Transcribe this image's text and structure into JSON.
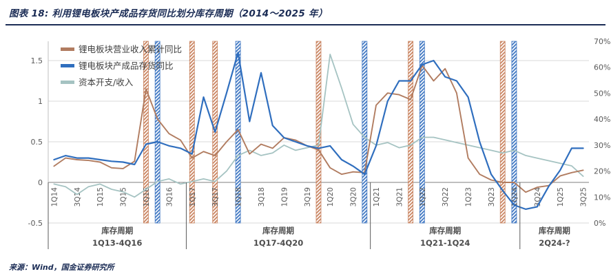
{
  "title": "图表 18: 利用锂电板块产成品存货同比划分库存周期（2014～2025 年）",
  "source": "来源：Wind，国金证券研究所",
  "chart_data": {
    "type": "line",
    "x_labels": [
      "1Q14",
      "2Q14",
      "3Q14",
      "4Q14",
      "1Q15",
      "2Q15",
      "3Q15",
      "4Q15",
      "1Q16",
      "2Q16",
      "3Q16",
      "4Q16",
      "1Q17",
      "2Q17",
      "3Q17",
      "4Q17",
      "1Q18",
      "2Q18",
      "3Q18",
      "4Q18",
      "1Q19",
      "2Q19",
      "3Q19",
      "4Q19",
      "1Q20",
      "2Q20",
      "3Q20",
      "4Q20",
      "1Q21",
      "2Q21",
      "3Q21",
      "4Q21",
      "1Q22",
      "2Q22",
      "3Q22",
      "4Q22",
      "1Q23",
      "2Q23",
      "3Q23",
      "4Q23",
      "1Q24",
      "2Q24",
      "3Q24",
      "4Q24",
      "1Q25",
      "2Q25",
      "3Q25"
    ],
    "x_tick_every": 2,
    "left_axis": {
      "min": -0.5,
      "max": 1.5,
      "ticks": [
        1.5,
        1,
        0.5,
        0,
        -0.5
      ],
      "labels": [
        "1.5",
        "1",
        "0.5",
        "0",
        "-0.5"
      ]
    },
    "right_axis": {
      "min": 0,
      "max": 70,
      "ticks": [
        70,
        60,
        50,
        40,
        30,
        20,
        10,
        0
      ],
      "labels": [
        "70%",
        "60%",
        "50%",
        "40%",
        "30%",
        "20%",
        "10%",
        "0%"
      ]
    },
    "grid": true,
    "legend_position": "top-left",
    "colors": {
      "revenue_bar": "#C9835F",
      "inventory_bar": "#3E76C2"
    },
    "series": [
      {
        "name": "锂电板块营业收入累计同比",
        "axis": "left",
        "color": "#B17C60",
        "values": [
          0.2,
          0.3,
          0.28,
          0.27,
          0.25,
          0.18,
          0.17,
          0.26,
          1.15,
          0.78,
          0.6,
          0.52,
          0.3,
          0.38,
          0.33,
          0.5,
          0.65,
          0.35,
          0.47,
          0.42,
          0.55,
          0.52,
          0.45,
          0.4,
          0.18,
          0.1,
          0.13,
          0.12,
          0.95,
          1.1,
          1.08,
          1.02,
          1.44,
          1.25,
          1.4,
          1.1,
          0.3,
          0.1,
          0.03,
          0.0,
          0.0,
          -0.12,
          -0.06,
          -0.04,
          0.08,
          0.12,
          0.15
        ]
      },
      {
        "name": "锂电板块产成品存货同比",
        "axis": "left",
        "color": "#2F6EBE",
        "values": [
          0.28,
          0.33,
          0.3,
          0.3,
          0.28,
          0.26,
          0.25,
          0.22,
          0.47,
          0.5,
          0.45,
          0.42,
          0.35,
          1.05,
          0.62,
          1.1,
          1.6,
          0.75,
          1.35,
          0.7,
          0.55,
          0.5,
          0.45,
          0.42,
          0.45,
          0.28,
          0.2,
          0.1,
          0.45,
          1.0,
          1.25,
          1.25,
          1.45,
          1.5,
          1.3,
          1.25,
          1.05,
          0.5,
          0.1,
          -0.1,
          -0.28,
          -0.33,
          -0.3,
          -0.05,
          0.15,
          0.42,
          0.42
        ]
      },
      {
        "name": "资本开支/收入",
        "axis": "right",
        "color": "#A5C3C2",
        "values": [
          15,
          14,
          11,
          14,
          15,
          13,
          12,
          10,
          13,
          16,
          17,
          15,
          16,
          17,
          16,
          20,
          26,
          28,
          26,
          27,
          30,
          28,
          29,
          30,
          65,
          52,
          38,
          33,
          30,
          31,
          29,
          30,
          33,
          33,
          32,
          31,
          30,
          29,
          28,
          27,
          28,
          26,
          25,
          24,
          23,
          22,
          18
        ]
      }
    ],
    "event_bars": [
      {
        "quarter": "1Q16",
        "series": "revenue"
      },
      {
        "quarter": "2Q16",
        "series": "inventory"
      },
      {
        "quarter": "1Q17",
        "series": "revenue"
      },
      {
        "quarter": "3Q17",
        "series": "revenue"
      },
      {
        "quarter": "1Q18",
        "series": "inventory"
      },
      {
        "quarter": "4Q19",
        "series": "revenue"
      },
      {
        "quarter": "4Q20",
        "series": "inventory"
      },
      {
        "quarter": "4Q21",
        "series": "revenue"
      },
      {
        "quarter": "1Q22",
        "series": "inventory"
      },
      {
        "quarter": "4Q23",
        "series": "revenue"
      },
      {
        "quarter": "1Q24",
        "series": "inventory"
      }
    ],
    "cycle_segments": [
      {
        "line1": "库存周期",
        "line2": "1Q13-4Q16",
        "end_after": "4Q16"
      },
      {
        "line1": "库存周期",
        "line2": "1Q17-4Q20",
        "end_after": "4Q20"
      },
      {
        "line1": "库存周期",
        "line2": "1Q21-1Q24",
        "end_after": "1Q24"
      },
      {
        "line1": "库存周期",
        "line2": "2Q24-?",
        "end_after": null
      }
    ]
  }
}
